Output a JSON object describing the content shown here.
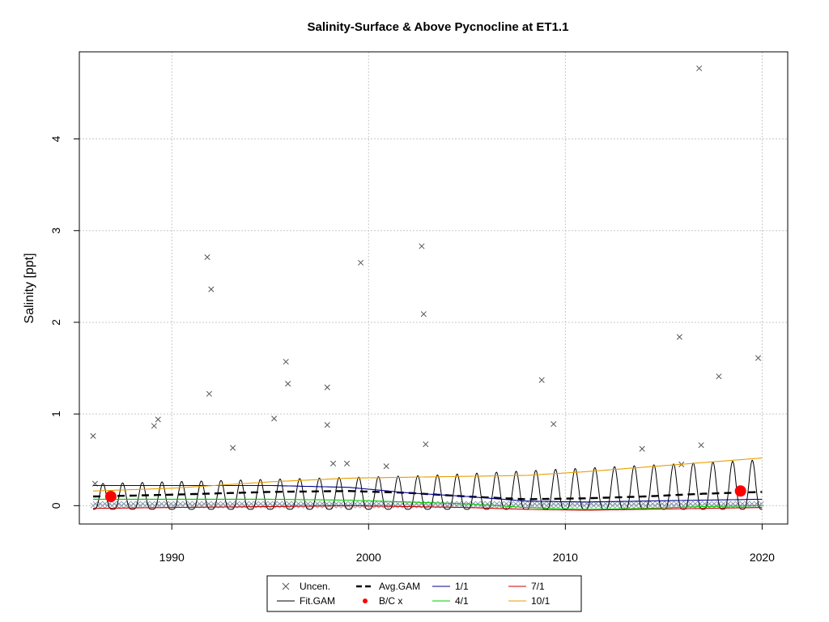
{
  "chart_data": {
    "type": "line",
    "title": "Salinity-Surface & Above Pycnocline at ET1.1",
    "xlabel": "",
    "ylabel": "Salinity [ppt]",
    "xlim": [
      1985.3,
      2021.3
    ],
    "ylim": [
      -0.2,
      4.95
    ],
    "xticks": [
      1990,
      2000,
      2010,
      2020
    ],
    "yticks": [
      0,
      1,
      2,
      3,
      4
    ],
    "grid": true,
    "legend_position": "bottom-center",
    "legend": [
      {
        "label": "Uncen.",
        "symbol": "cross",
        "color": "#555555"
      },
      {
        "label": "Fit.GAM",
        "symbol": "line",
        "color": "#000000"
      },
      {
        "label": "Avg.GAM",
        "symbol": "dashed",
        "color": "#000000"
      },
      {
        "label": "B/C x",
        "symbol": "dot",
        "color": "#ff0000"
      },
      {
        "label": "1/1",
        "symbol": "line",
        "color": "#00008b"
      },
      {
        "label": "4/1",
        "symbol": "line",
        "color": "#00cc00"
      },
      {
        "label": "7/1",
        "symbol": "line",
        "color": "#cc0000"
      },
      {
        "label": "10/1",
        "symbol": "line",
        "color": "#e69f00"
      }
    ],
    "uncensored_points": [
      [
        1986.0,
        0.76
      ],
      [
        1986.1,
        0.24
      ],
      [
        1989.1,
        0.87
      ],
      [
        1989.3,
        0.94
      ],
      [
        1991.8,
        2.71
      ],
      [
        1991.9,
        1.22
      ],
      [
        1992.0,
        2.36
      ],
      [
        1993.1,
        0.63
      ],
      [
        1995.2,
        0.95
      ],
      [
        1995.8,
        1.57
      ],
      [
        1995.9,
        1.33
      ],
      [
        1997.9,
        1.29
      ],
      [
        1997.9,
        0.88
      ],
      [
        1998.2,
        0.46
      ],
      [
        1998.9,
        0.46
      ],
      [
        1999.6,
        2.65
      ],
      [
        2000.9,
        0.43
      ],
      [
        2002.7,
        2.83
      ],
      [
        2002.8,
        2.09
      ],
      [
        2002.9,
        0.67
      ],
      [
        2008.8,
        1.37
      ],
      [
        2009.4,
        0.89
      ],
      [
        2013.9,
        0.62
      ],
      [
        2015.8,
        1.84
      ],
      [
        2015.9,
        0.45
      ],
      [
        2016.8,
        4.77
      ],
      [
        2016.9,
        0.66
      ],
      [
        2017.8,
        1.41
      ],
      [
        2019.8,
        1.61
      ]
    ],
    "baseline_cluster": {
      "from": 1986,
      "to": 2020,
      "values": [
        0.0,
        0.02
      ]
    },
    "fit_gam": {
      "from": 1986,
      "to": 2020,
      "period_years": 1,
      "high": [
        0.24,
        0.33,
        0.5
      ],
      "low": [
        -0.04,
        -0.04,
        -0.04
      ]
    },
    "series": [
      {
        "name": "Avg.GAM",
        "x": [
          1986,
          1990,
          1995,
          1999,
          2002,
          2005,
          2008,
          2011,
          2014,
          2017,
          2020
        ],
        "values": [
          0.1,
          0.12,
          0.15,
          0.16,
          0.14,
          0.1,
          0.07,
          0.08,
          0.1,
          0.13,
          0.15
        ]
      },
      {
        "name": "1/1",
        "x": [
          1986,
          1990,
          1995,
          1999,
          2002,
          2005,
          2008,
          2011,
          2014,
          2017,
          2020
        ],
        "values": [
          0.22,
          0.22,
          0.22,
          0.2,
          0.14,
          0.1,
          0.05,
          0.04,
          0.05,
          0.06,
          0.07
        ]
      },
      {
        "name": "4/1",
        "x": [
          1986,
          1990,
          1995,
          1999,
          2002,
          2005,
          2008,
          2011,
          2014,
          2017,
          2020
        ],
        "values": [
          0.07,
          0.07,
          0.07,
          0.06,
          0.04,
          0.02,
          -0.02,
          -0.04,
          -0.03,
          -0.01,
          0.0
        ]
      },
      {
        "name": "7/1",
        "x": [
          1986,
          1990,
          1995,
          1999,
          2002,
          2005,
          2008,
          2011,
          2014,
          2017,
          2020
        ],
        "values": [
          -0.03,
          -0.02,
          -0.01,
          0.0,
          -0.01,
          -0.02,
          -0.04,
          -0.05,
          -0.04,
          -0.03,
          -0.02
        ]
      },
      {
        "name": "10/1",
        "x": [
          1986,
          1990,
          1995,
          1999,
          2002,
          2005,
          2008,
          2011,
          2014,
          2017,
          2020
        ],
        "values": [
          0.16,
          0.19,
          0.26,
          0.3,
          0.31,
          0.32,
          0.33,
          0.37,
          0.42,
          0.47,
          0.52
        ]
      }
    ],
    "bc_points": [
      [
        1986.9,
        0.1
      ],
      [
        2018.9,
        0.16
      ]
    ]
  }
}
